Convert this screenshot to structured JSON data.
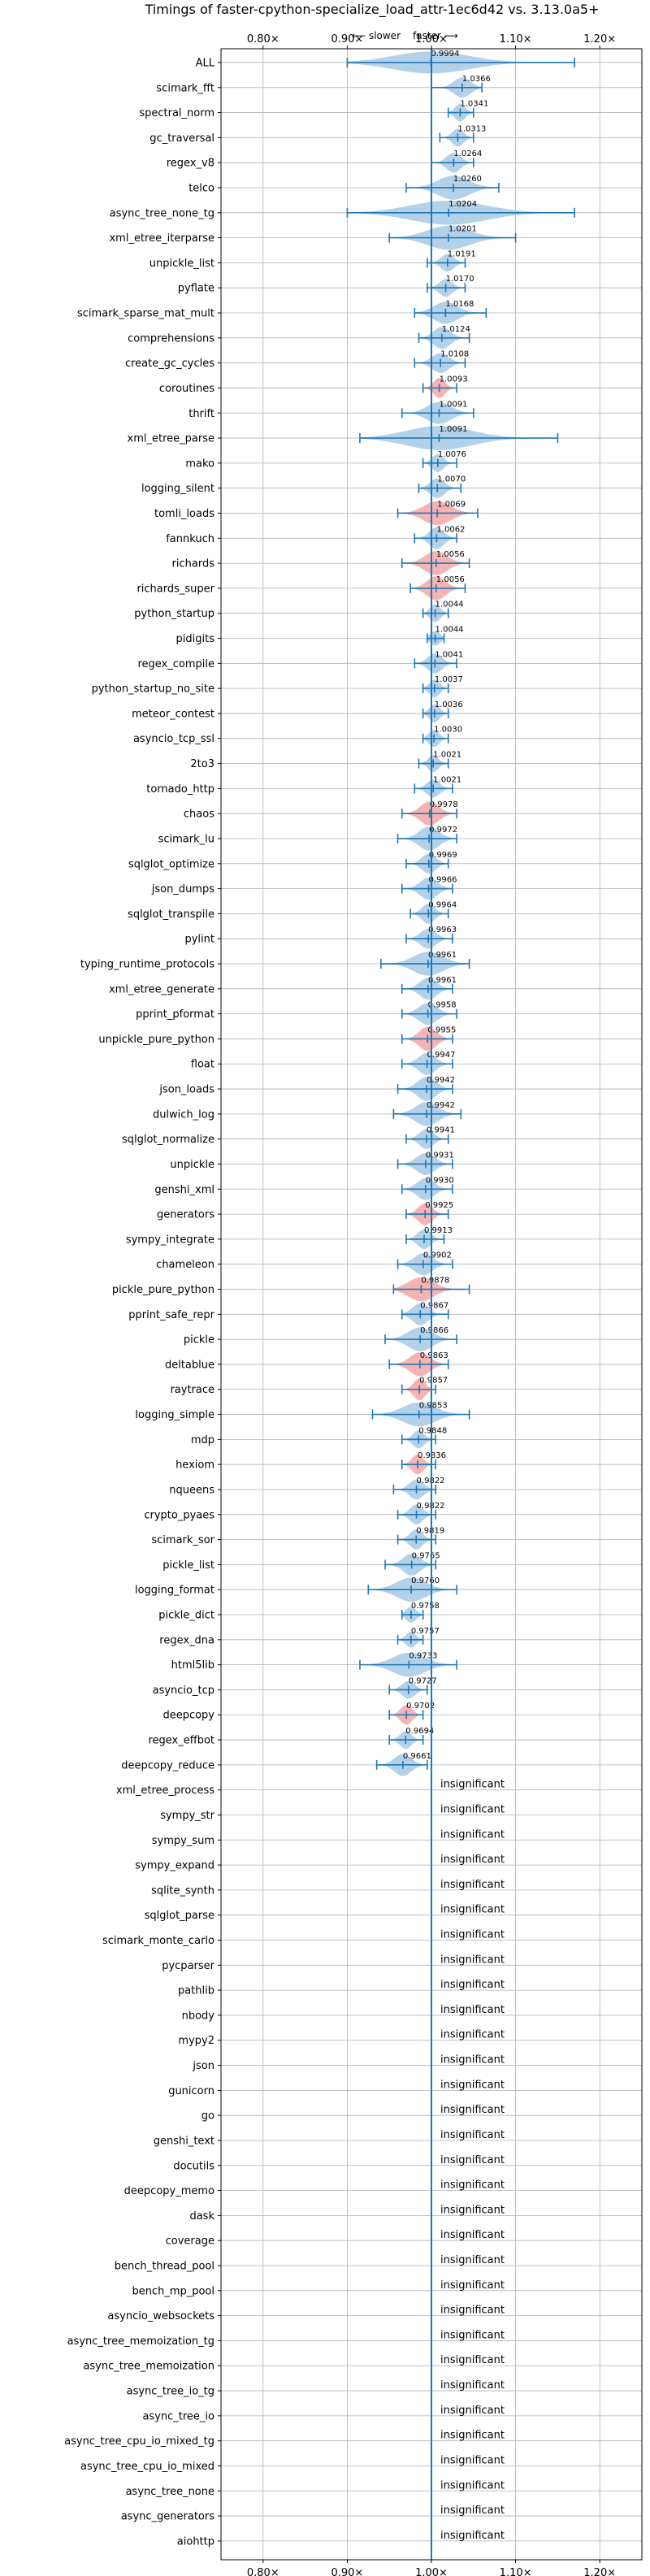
{
  "chart_data": {
    "type": "violin",
    "title": "Timings of faster-cpython-specialize_load_attr-1ec6d42 vs. 3.13.0a5+",
    "direction_slower": "⟵ slower",
    "direction_faster": "faster ⟶",
    "xlim": [
      0.75,
      1.25
    ],
    "x_ticks": [
      0.8,
      0.9,
      1.0,
      1.1,
      1.2
    ],
    "x_tick_labels": [
      "0.80×",
      "0.90×",
      "1.00×",
      "1.10×",
      "1.20×"
    ],
    "insignificant_text": "insignificant",
    "colors": {
      "faster": "#a7c9e6",
      "slower": "#f4a6a6",
      "line": "#1f77b4",
      "grid": "#b0b0b0"
    },
    "benchmarks": [
      {
        "name": "ALL",
        "value": 0.9994,
        "label": "0.9994",
        "lo": 0.9,
        "hi": 1.17,
        "width": 0.03,
        "color": "blue"
      },
      {
        "name": "scimark_fft",
        "value": 1.0366,
        "label": "1.0366",
        "lo": 1.0,
        "hi": 1.06,
        "width": 0.025,
        "color": "blue"
      },
      {
        "name": "spectral_norm",
        "value": 1.0341,
        "label": "1.0341",
        "lo": 1.02,
        "hi": 1.05,
        "width": 0.02,
        "color": "blue"
      },
      {
        "name": "gc_traversal",
        "value": 1.0313,
        "label": "1.0313",
        "lo": 1.01,
        "hi": 1.05,
        "width": 0.02,
        "color": "blue"
      },
      {
        "name": "regex_v8",
        "value": 1.0264,
        "label": "1.0264",
        "lo": 1.0,
        "hi": 1.05,
        "width": 0.025,
        "color": "blue"
      },
      {
        "name": "telco",
        "value": 1.026,
        "label": "1.0260",
        "lo": 0.97,
        "hi": 1.08,
        "width": 0.04,
        "color": "blue"
      },
      {
        "name": "async_tree_none_tg",
        "value": 1.0204,
        "label": "1.0204",
        "lo": 0.9,
        "hi": 1.17,
        "width": 0.08,
        "color": "blue"
      },
      {
        "name": "xml_etree_iterparse",
        "value": 1.0201,
        "label": "1.0201",
        "lo": 0.95,
        "hi": 1.1,
        "width": 0.06,
        "color": "blue"
      },
      {
        "name": "unpickle_list",
        "value": 1.0191,
        "label": "1.0191",
        "lo": 0.995,
        "hi": 1.04,
        "width": 0.02,
        "color": "blue"
      },
      {
        "name": "pyflate",
        "value": 1.017,
        "label": "1.0170",
        "lo": 0.995,
        "hi": 1.04,
        "width": 0.02,
        "color": "blue"
      },
      {
        "name": "scimark_sparse_mat_mult",
        "value": 1.0168,
        "label": "1.0168",
        "lo": 0.98,
        "hi": 1.065,
        "width": 0.03,
        "color": "blue"
      },
      {
        "name": "comprehensions",
        "value": 1.0124,
        "label": "1.0124",
        "lo": 0.985,
        "hi": 1.045,
        "width": 0.03,
        "color": "blue"
      },
      {
        "name": "create_gc_cycles",
        "value": 1.0108,
        "label": "1.0108",
        "lo": 0.98,
        "hi": 1.04,
        "width": 0.025,
        "color": "blue"
      },
      {
        "name": "coroutines",
        "value": 1.0093,
        "label": "1.0093",
        "lo": 0.99,
        "hi": 1.03,
        "width": 0.025,
        "color": "red"
      },
      {
        "name": "thrift",
        "value": 1.0091,
        "label": "1.0091",
        "lo": 0.965,
        "hi": 1.05,
        "width": 0.03,
        "color": "blue"
      },
      {
        "name": "xml_etree_parse",
        "value": 1.0091,
        "label": "1.0091",
        "lo": 0.915,
        "hi": 1.15,
        "width": 0.045,
        "color": "blue"
      },
      {
        "name": "mako",
        "value": 1.0076,
        "label": "1.0076",
        "lo": 0.99,
        "hi": 1.03,
        "width": 0.02,
        "color": "blue"
      },
      {
        "name": "logging_silent",
        "value": 1.007,
        "label": "1.0070",
        "lo": 0.985,
        "hi": 1.035,
        "width": 0.025,
        "color": "blue"
      },
      {
        "name": "tomli_loads",
        "value": 1.0069,
        "label": "1.0069",
        "lo": 0.96,
        "hi": 1.055,
        "width": 0.04,
        "color": "red"
      },
      {
        "name": "fannkuch",
        "value": 1.0062,
        "label": "1.0062",
        "lo": 0.98,
        "hi": 1.03,
        "width": 0.03,
        "color": "blue"
      },
      {
        "name": "richards",
        "value": 1.0056,
        "label": "1.0056",
        "lo": 0.965,
        "hi": 1.045,
        "width": 0.04,
        "color": "red"
      },
      {
        "name": "richards_super",
        "value": 1.0056,
        "label": "1.0056",
        "lo": 0.975,
        "hi": 1.04,
        "width": 0.04,
        "color": "red"
      },
      {
        "name": "python_startup",
        "value": 1.0044,
        "label": "1.0044",
        "lo": 0.99,
        "hi": 1.02,
        "width": 0.02,
        "color": "blue"
      },
      {
        "name": "pidigits",
        "value": 1.0044,
        "label": "1.0044",
        "lo": 0.995,
        "hi": 1.015,
        "width": 0.012,
        "color": "blue"
      },
      {
        "name": "regex_compile",
        "value": 1.0041,
        "label": "1.0041",
        "lo": 0.98,
        "hi": 1.03,
        "width": 0.025,
        "color": "blue"
      },
      {
        "name": "python_startup_no_site",
        "value": 1.0037,
        "label": "1.0037",
        "lo": 0.99,
        "hi": 1.02,
        "width": 0.02,
        "color": "blue"
      },
      {
        "name": "meteor_contest",
        "value": 1.0036,
        "label": "1.0036",
        "lo": 0.99,
        "hi": 1.02,
        "width": 0.02,
        "color": "blue"
      },
      {
        "name": "asyncio_tcp_ssl",
        "value": 1.003,
        "label": "1.0030",
        "lo": 0.99,
        "hi": 1.02,
        "width": 0.018,
        "color": "blue"
      },
      {
        "name": "2to3",
        "value": 1.0021,
        "label": "1.0021",
        "lo": 0.985,
        "hi": 1.02,
        "width": 0.018,
        "color": "blue"
      },
      {
        "name": "tornado_http",
        "value": 1.0021,
        "label": "1.0021",
        "lo": 0.98,
        "hi": 1.025,
        "width": 0.02,
        "color": "blue"
      },
      {
        "name": "chaos",
        "value": 0.9978,
        "label": "0.9978",
        "lo": 0.965,
        "hi": 1.03,
        "width": 0.035,
        "color": "red"
      },
      {
        "name": "scimark_lu",
        "value": 0.9972,
        "label": "0.9972",
        "lo": 0.96,
        "hi": 1.03,
        "width": 0.04,
        "color": "blue"
      },
      {
        "name": "sqlglot_optimize",
        "value": 0.9969,
        "label": "0.9969",
        "lo": 0.97,
        "hi": 1.02,
        "width": 0.025,
        "color": "blue"
      },
      {
        "name": "json_dumps",
        "value": 0.9966,
        "label": "0.9966",
        "lo": 0.965,
        "hi": 1.025,
        "width": 0.03,
        "color": "blue"
      },
      {
        "name": "sqlglot_transpile",
        "value": 0.9964,
        "label": "0.9964",
        "lo": 0.975,
        "hi": 1.02,
        "width": 0.025,
        "color": "blue"
      },
      {
        "name": "pylint",
        "value": 0.9963,
        "label": "0.9963",
        "lo": 0.97,
        "hi": 1.025,
        "width": 0.025,
        "color": "blue"
      },
      {
        "name": "typing_runtime_protocols",
        "value": 0.9961,
        "label": "0.9961",
        "lo": 0.94,
        "hi": 1.045,
        "width": 0.045,
        "color": "blue"
      },
      {
        "name": "xml_etree_generate",
        "value": 0.9961,
        "label": "0.9961",
        "lo": 0.965,
        "hi": 1.025,
        "width": 0.03,
        "color": "blue"
      },
      {
        "name": "pprint_pformat",
        "value": 0.9958,
        "label": "0.9958",
        "lo": 0.965,
        "hi": 1.03,
        "width": 0.03,
        "color": "blue"
      },
      {
        "name": "unpickle_pure_python",
        "value": 0.9955,
        "label": "0.9955",
        "lo": 0.965,
        "hi": 1.025,
        "width": 0.035,
        "color": "red"
      },
      {
        "name": "float",
        "value": 0.9947,
        "label": "0.9947",
        "lo": 0.965,
        "hi": 1.025,
        "width": 0.03,
        "color": "blue"
      },
      {
        "name": "json_loads",
        "value": 0.9942,
        "label": "0.9942",
        "lo": 0.96,
        "hi": 1.025,
        "width": 0.035,
        "color": "blue"
      },
      {
        "name": "dulwich_log",
        "value": 0.9942,
        "label": "0.9942",
        "lo": 0.955,
        "hi": 1.035,
        "width": 0.035,
        "color": "blue"
      },
      {
        "name": "sqlglot_normalize",
        "value": 0.9941,
        "label": "0.9941",
        "lo": 0.97,
        "hi": 1.02,
        "width": 0.025,
        "color": "blue"
      },
      {
        "name": "unpickle",
        "value": 0.9931,
        "label": "0.9931",
        "lo": 0.96,
        "hi": 1.025,
        "width": 0.03,
        "color": "blue"
      },
      {
        "name": "genshi_xml",
        "value": 0.993,
        "label": "0.9930",
        "lo": 0.965,
        "hi": 1.025,
        "width": 0.03,
        "color": "blue"
      },
      {
        "name": "generators",
        "value": 0.9925,
        "label": "0.9925",
        "lo": 0.97,
        "hi": 1.02,
        "width": 0.03,
        "color": "red"
      },
      {
        "name": "sympy_integrate",
        "value": 0.9913,
        "label": "0.9913",
        "lo": 0.97,
        "hi": 1.015,
        "width": 0.025,
        "color": "blue"
      },
      {
        "name": "chameleon",
        "value": 0.9902,
        "label": "0.9902",
        "lo": 0.96,
        "hi": 1.025,
        "width": 0.03,
        "color": "blue"
      },
      {
        "name": "pickle_pure_python",
        "value": 0.9878,
        "label": "0.9878",
        "lo": 0.955,
        "hi": 1.045,
        "width": 0.04,
        "color": "red"
      },
      {
        "name": "pprint_safe_repr",
        "value": 0.9867,
        "label": "0.9867",
        "lo": 0.965,
        "hi": 1.02,
        "width": 0.03,
        "color": "blue"
      },
      {
        "name": "pickle",
        "value": 0.9866,
        "label": "0.9866",
        "lo": 0.945,
        "hi": 1.03,
        "width": 0.035,
        "color": "blue"
      },
      {
        "name": "deltablue",
        "value": 0.9863,
        "label": "0.9863",
        "lo": 0.95,
        "hi": 1.02,
        "width": 0.04,
        "color": "red"
      },
      {
        "name": "raytrace",
        "value": 0.9857,
        "label": "0.9857",
        "lo": 0.965,
        "hi": 1.005,
        "width": 0.03,
        "color": "red"
      },
      {
        "name": "logging_simple",
        "value": 0.9853,
        "label": "0.9853",
        "lo": 0.93,
        "hi": 1.045,
        "width": 0.04,
        "color": "blue"
      },
      {
        "name": "mdp",
        "value": 0.9848,
        "label": "0.9848",
        "lo": 0.965,
        "hi": 1.005,
        "width": 0.02,
        "color": "blue"
      },
      {
        "name": "hexiom",
        "value": 0.9836,
        "label": "0.9836",
        "lo": 0.965,
        "hi": 1.005,
        "width": 0.025,
        "color": "red"
      },
      {
        "name": "nqueens",
        "value": 0.9822,
        "label": "0.9822",
        "lo": 0.955,
        "hi": 1.005,
        "width": 0.025,
        "color": "blue"
      },
      {
        "name": "crypto_pyaes",
        "value": 0.9822,
        "label": "0.9822",
        "lo": 0.96,
        "hi": 1.005,
        "width": 0.025,
        "color": "blue"
      },
      {
        "name": "scimark_sor",
        "value": 0.9819,
        "label": "0.9819",
        "lo": 0.96,
        "hi": 1.005,
        "width": 0.025,
        "color": "blue"
      },
      {
        "name": "pickle_list",
        "value": 0.9765,
        "label": "0.9765",
        "lo": 0.945,
        "hi": 1.005,
        "width": 0.03,
        "color": "blue"
      },
      {
        "name": "logging_format",
        "value": 0.976,
        "label": "0.9760",
        "lo": 0.925,
        "hi": 1.03,
        "width": 0.04,
        "color": "blue"
      },
      {
        "name": "pickle_dict",
        "value": 0.9758,
        "label": "0.9758",
        "lo": 0.965,
        "hi": 0.99,
        "width": 0.015,
        "color": "blue"
      },
      {
        "name": "regex_dna",
        "value": 0.9757,
        "label": "0.9757",
        "lo": 0.96,
        "hi": 0.99,
        "width": 0.015,
        "color": "blue"
      },
      {
        "name": "html5lib",
        "value": 0.9733,
        "label": "0.9733",
        "lo": 0.915,
        "hi": 1.03,
        "width": 0.04,
        "color": "blue"
      },
      {
        "name": "asyncio_tcp",
        "value": 0.9727,
        "label": "0.9727",
        "lo": 0.95,
        "hi": 0.995,
        "width": 0.02,
        "color": "blue"
      },
      {
        "name": "deepcopy",
        "value": 0.9702,
        "label": "0.9702",
        "lo": 0.95,
        "hi": 0.99,
        "width": 0.025,
        "color": "red"
      },
      {
        "name": "regex_effbot",
        "value": 0.9694,
        "label": "0.9694",
        "lo": 0.95,
        "hi": 0.99,
        "width": 0.02,
        "color": "blue"
      },
      {
        "name": "deepcopy_reduce",
        "value": 0.9661,
        "label": "0.9661",
        "lo": 0.935,
        "hi": 0.995,
        "width": 0.03,
        "color": "blue"
      },
      {
        "name": "xml_etree_process",
        "insignificant": true
      },
      {
        "name": "sympy_str",
        "insignificant": true
      },
      {
        "name": "sympy_sum",
        "insignificant": true
      },
      {
        "name": "sympy_expand",
        "insignificant": true
      },
      {
        "name": "sqlite_synth",
        "insignificant": true
      },
      {
        "name": "sqlglot_parse",
        "insignificant": true
      },
      {
        "name": "scimark_monte_carlo",
        "insignificant": true
      },
      {
        "name": "pycparser",
        "insignificant": true
      },
      {
        "name": "pathlib",
        "insignificant": true
      },
      {
        "name": "nbody",
        "insignificant": true
      },
      {
        "name": "mypy2",
        "insignificant": true
      },
      {
        "name": "json",
        "insignificant": true
      },
      {
        "name": "gunicorn",
        "insignificant": true
      },
      {
        "name": "go",
        "insignificant": true
      },
      {
        "name": "genshi_text",
        "insignificant": true
      },
      {
        "name": "docutils",
        "insignificant": true
      },
      {
        "name": "deepcopy_memo",
        "insignificant": true
      },
      {
        "name": "dask",
        "insignificant": true
      },
      {
        "name": "coverage",
        "insignificant": true
      },
      {
        "name": "bench_thread_pool",
        "insignificant": true
      },
      {
        "name": "bench_mp_pool",
        "insignificant": true
      },
      {
        "name": "asyncio_websockets",
        "insignificant": true
      },
      {
        "name": "async_tree_memoization_tg",
        "insignificant": true
      },
      {
        "name": "async_tree_memoization",
        "insignificant": true
      },
      {
        "name": "async_tree_io_tg",
        "insignificant": true
      },
      {
        "name": "async_tree_io",
        "insignificant": true
      },
      {
        "name": "async_tree_cpu_io_mixed_tg",
        "insignificant": true
      },
      {
        "name": "async_tree_cpu_io_mixed",
        "insignificant": true
      },
      {
        "name": "async_tree_none",
        "insignificant": true
      },
      {
        "name": "async_generators",
        "insignificant": true
      },
      {
        "name": "aiohttp",
        "insignificant": true
      }
    ]
  }
}
